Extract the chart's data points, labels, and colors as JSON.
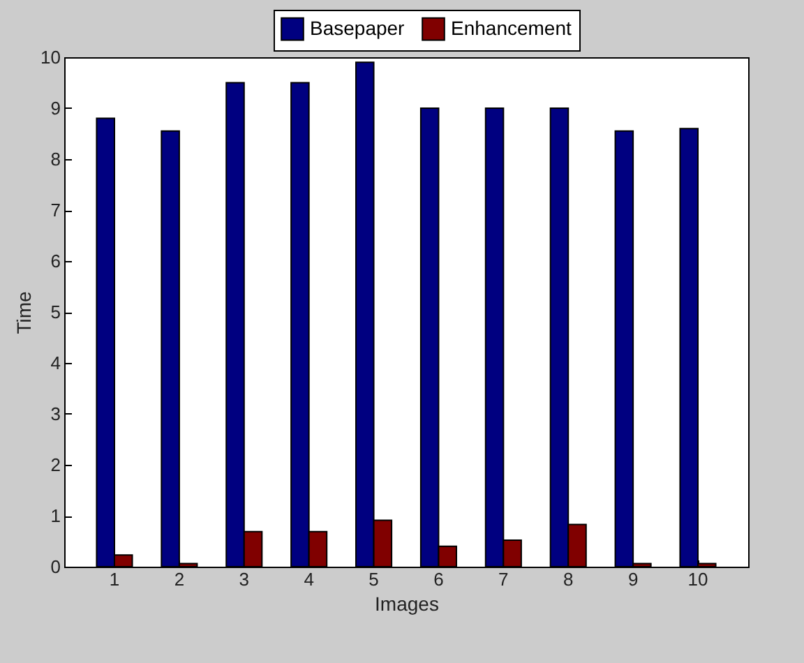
{
  "chart_data": {
    "type": "bar",
    "xlabel": "Images",
    "ylabel": "Time",
    "categories": [
      "1",
      "2",
      "3",
      "4",
      "5",
      "6",
      "7",
      "8",
      "9",
      "10"
    ],
    "series": [
      {
        "name": "Basepaper",
        "color": "#000080",
        "values": [
          8.8,
          8.55,
          9.5,
          9.5,
          9.9,
          9.0,
          9.0,
          9.0,
          8.55,
          8.6
        ]
      },
      {
        "name": "Enhancement",
        "color": "#800000",
        "values": [
          0.23,
          0.06,
          0.69,
          0.69,
          0.91,
          0.4,
          0.52,
          0.83,
          0.06,
          0.06
        ]
      }
    ],
    "ylim": [
      0,
      10
    ],
    "yticks": [
      0,
      1,
      2,
      3,
      4,
      5,
      6,
      7,
      8,
      9,
      10
    ],
    "grid": false,
    "legend": "top"
  }
}
